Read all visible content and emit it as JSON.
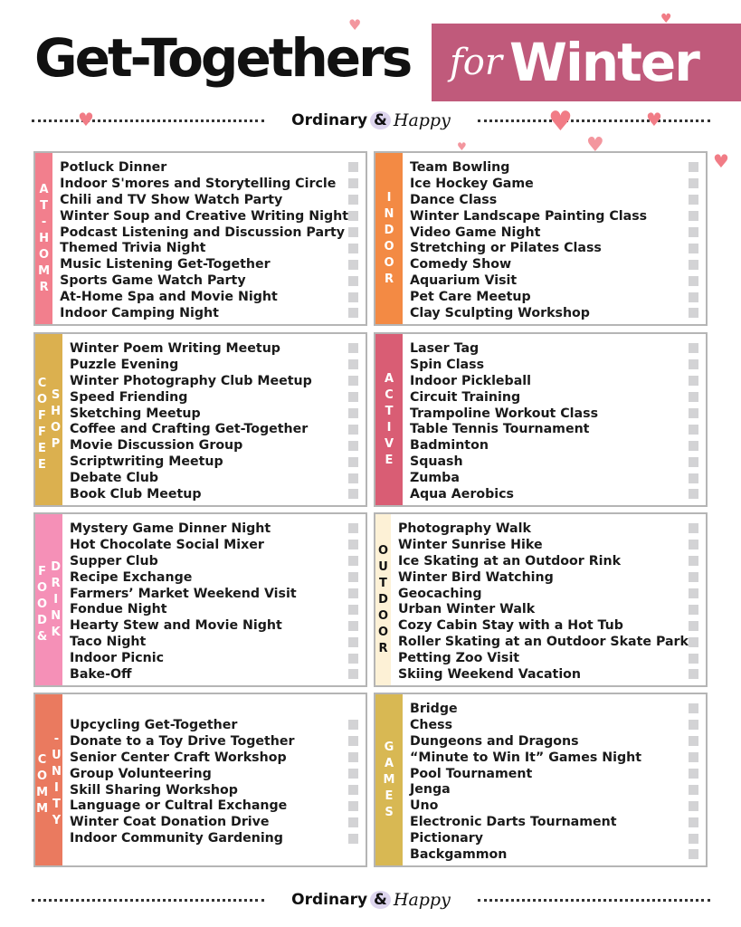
{
  "header": {
    "title": "Get-Togethers",
    "banner_for": "for",
    "banner_winter": "Winter"
  },
  "logo": {
    "ordinary": "Ordinary",
    "amp": "&",
    "happy": "Happy"
  },
  "colors": {
    "banner": "#c05a7b",
    "heart": "#f17c86",
    "checkbox": "#d3d3d5"
  },
  "sections": [
    {
      "label_columns": [
        "AT-HOMR"
      ],
      "color": "#f27f8d",
      "text": "#fff",
      "items": [
        "Potluck Dinner",
        "Indoor S'mores and Storytelling Circle",
        "Chili and TV Show Watch Party",
        "Winter Soup and Creative Writing Night",
        "Podcast Listening and Discussion Party",
        "Themed Trivia Night",
        "Music Listening Get-Together",
        "Sports Game Watch Party",
        "At-Home Spa and Movie Night",
        "Indoor Camping Night"
      ]
    },
    {
      "label_columns": [
        "INDOOR"
      ],
      "color": "#f38a44",
      "text": "#fff",
      "items": [
        "Team Bowling",
        "Ice Hockey Game",
        "Dance Class",
        "Winter Landscape Painting Class",
        "Video Game Night",
        "Stretching or Pilates Class",
        "Comedy Show",
        "Aquarium Visit",
        "Pet Care Meetup",
        "Clay Sculpting Workshop"
      ]
    },
    {
      "label_columns": [
        "COFFEE",
        "SHOP"
      ],
      "color": "#dbb04f",
      "text": "#fff",
      "items": [
        "Winter Poem Writing Meetup",
        "Puzzle Evening",
        "Winter Photography Club Meetup",
        "Speed Friending",
        "Sketching Meetup",
        "Coffee and Crafting Get-Together",
        "Movie Discussion Group",
        "Scriptwriting Meetup",
        "Debate Club",
        "Book Club Meetup"
      ]
    },
    {
      "label_columns": [
        "ACTIVE"
      ],
      "color": "#d95d74",
      "text": "#fff",
      "items": [
        "Laser Tag",
        "Spin Class",
        "Indoor Pickleball",
        "Circuit Training",
        "Trampoline Workout Class",
        "Table Tennis Tournament",
        "Badminton",
        "Squash",
        "Zumba",
        "Aqua Aerobics"
      ]
    },
    {
      "label_columns": [
        "FOOD&",
        "DRINK"
      ],
      "color": "#f590b7",
      "text": "#fff",
      "items": [
        "Mystery Game Dinner Night",
        "Hot Chocolate Social Mixer",
        "Supper Club",
        "Recipe Exchange",
        "Farmers’ Market Weekend Visit",
        "Fondue Night",
        "Hearty Stew and Movie Night",
        "Taco Night",
        "Indoor Picnic",
        "Bake-Off"
      ]
    },
    {
      "label_columns": [
        "OUTDOOR"
      ],
      "color": "#fdf1d6",
      "text": "#111",
      "items": [
        "Photography Walk",
        "Winter Sunrise Hike",
        "Ice Skating at an Outdoor Rink",
        "Winter Bird Watching",
        "Geocaching",
        "Urban Winter Walk",
        "Cozy Cabin Stay with a Hot Tub",
        "Roller Skating at an Outdoor Skate Park",
        "Petting Zoo Visit",
        "Skiing Weekend Vacation"
      ]
    },
    {
      "label_columns": [
        "COMM",
        "-UNITY"
      ],
      "color": "#ea7a5f",
      "text": "#fff",
      "items": [
        "Upcycling Get-Together",
        "Donate to a Toy Drive Together",
        "Senior Center Craft Workshop",
        "Group Volunteering",
        "Skill Sharing Workshop",
        "Language or Cultral Exchange",
        "Winter Coat Donation Drive",
        "Indoor Community Gardening"
      ]
    },
    {
      "label_columns": [
        "GAMES"
      ],
      "color": "#d8b853",
      "text": "#fff",
      "items": [
        "Bridge",
        "Chess",
        "Dungeons and Dragons",
        "“Minute to Win It” Games Night",
        "Pool Tournament",
        "Jenga",
        "Uno",
        "Electronic Darts Tournament",
        "Pictionary",
        "Backgammon"
      ]
    }
  ]
}
